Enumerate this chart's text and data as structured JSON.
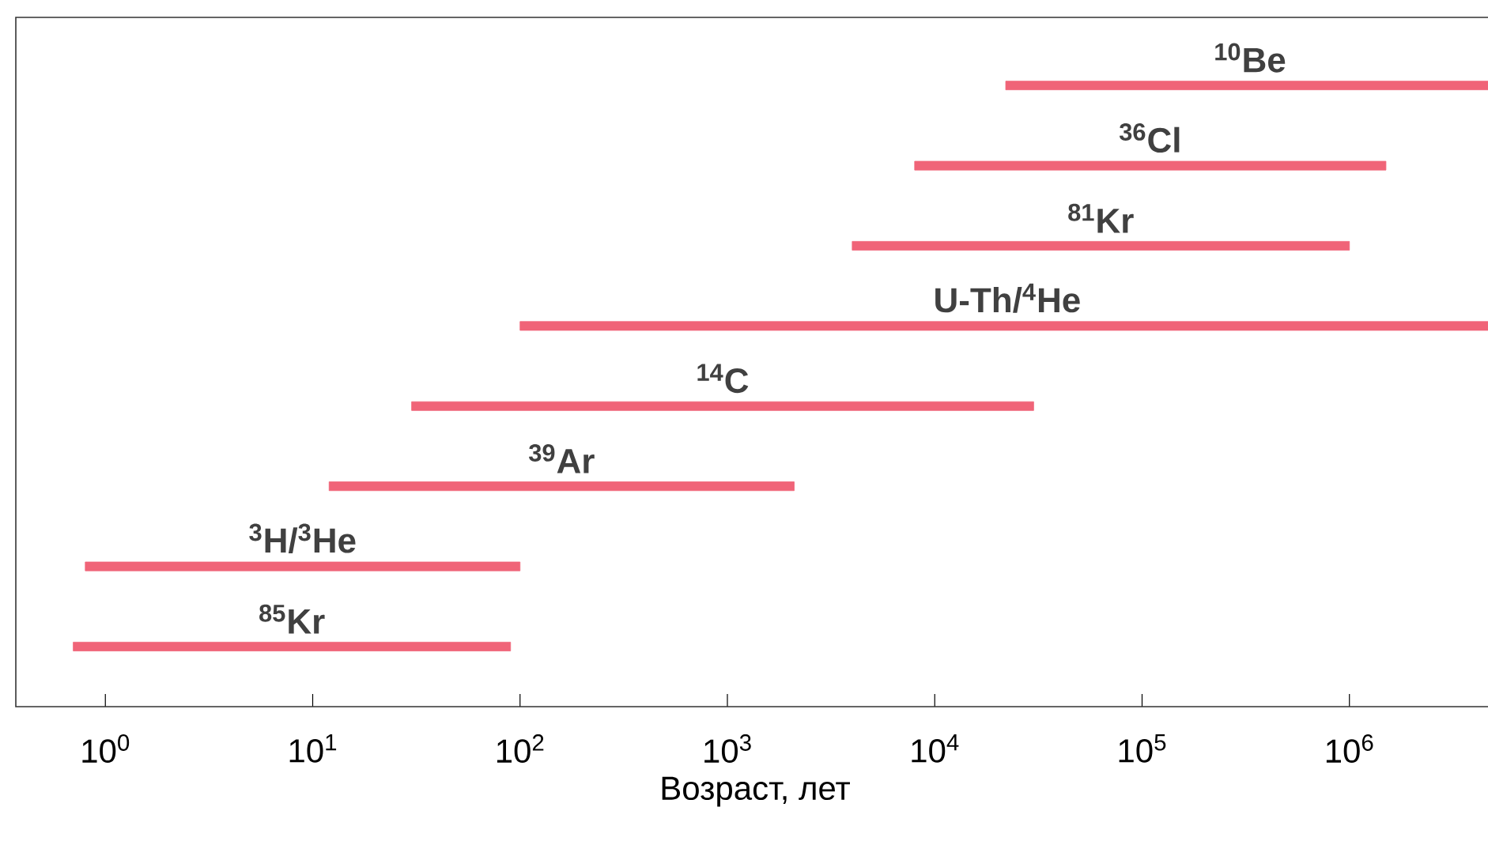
{
  "chart_data": {
    "type": "bar",
    "orientation": "horizontal",
    "log": "x",
    "tick_labels": "x",
    "xlabel": "Возраст, лет",
    "categories": [
      "$^{10}$Be",
      "$^{36}$Cl",
      "$^{81}$Kr",
      "U-Th/$^{4}$He",
      "$^{14}$C",
      "$^{39}$Ar",
      "$^{3}$H/$^{3}$He",
      "$^{85}$Kr"
    ],
    "base": [
      22000,
      8000,
      4000,
      100,
      30,
      12,
      0.8,
      0.7
    ],
    "values": [
      4978000,
      1492000,
      996000,
      4999900,
      29970,
      2088,
      99.2,
      89.3
    ],
    "color": "#f06478",
    "xlim": [
      0.37,
      5000000
    ],
    "xticks": [
      {
        "value": 1,
        "label": "10$^{0}$"
      },
      {
        "value": 10,
        "label": "10$^{1}$"
      },
      {
        "value": 100,
        "label": "10$^{2}$"
      },
      {
        "value": 1000,
        "label": "10$^{3}$"
      },
      {
        "value": 10000,
        "label": "10$^{4}$"
      },
      {
        "value": 100000,
        "label": "10$^{5}$"
      },
      {
        "value": 1000000,
        "label": "10$^{6}$"
      }
    ]
  }
}
